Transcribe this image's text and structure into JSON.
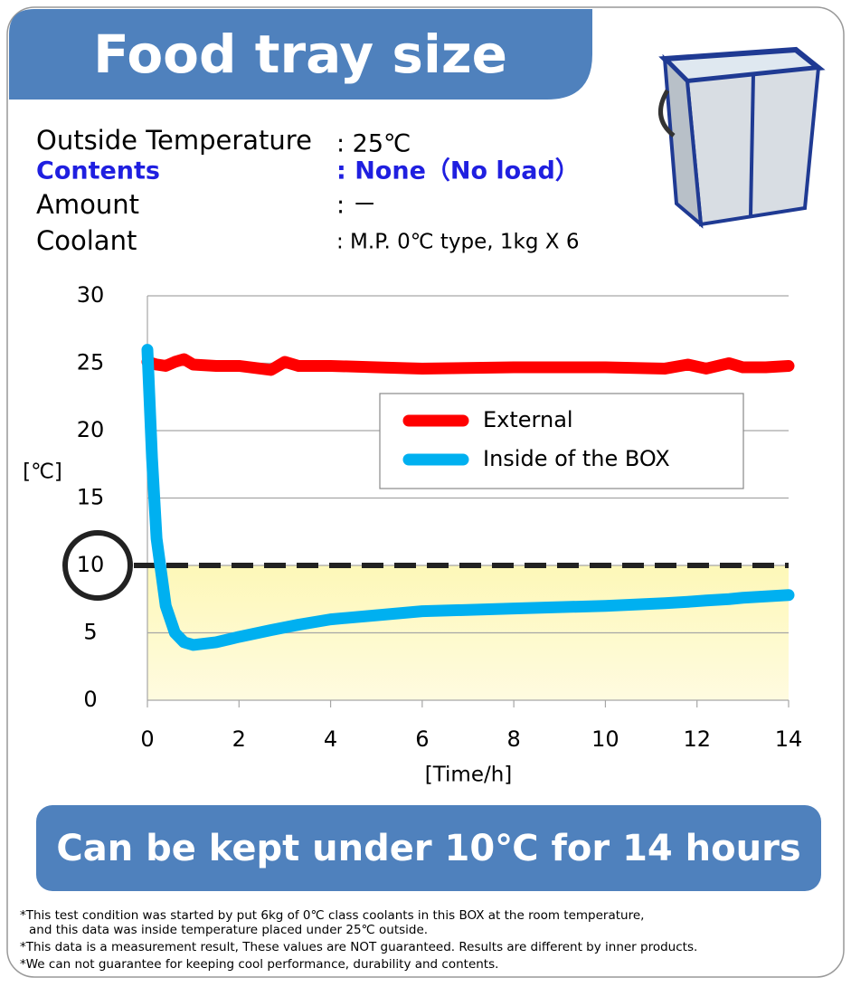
{
  "header": {
    "title": "Food tray size"
  },
  "conditions": [
    {
      "label": "Outside Temperature",
      "value": ": 25℃"
    },
    {
      "label": "Contents",
      "value": ": None（No load）"
    },
    {
      "label": "Amount",
      "value": ": －"
    },
    {
      "label": "Coolant",
      "value": ": M.P. 0℃ type, 1kg X 6"
    }
  ],
  "chart_data": {
    "type": "line",
    "y_label": "[℃]",
    "x_label": "[Time/h]",
    "x": [
      0,
      0.1,
      0.2,
      0.4,
      0.6,
      0.8,
      1,
      1.5,
      2,
      2.7,
      3,
      3.3,
      4,
      5,
      6,
      8,
      10,
      11.3,
      11.8,
      12.2,
      12.7,
      13,
      13.5,
      14
    ],
    "series": [
      {
        "name": "External",
        "color": "#ff0000",
        "values": [
          25.1,
          25.0,
          24.9,
          24.8,
          25.1,
          25.3,
          24.9,
          24.8,
          24.8,
          24.5,
          25.1,
          24.8,
          24.8,
          24.7,
          24.6,
          24.7,
          24.7,
          24.6,
          24.9,
          24.6,
          25.0,
          24.7,
          24.7,
          24.8
        ]
      },
      {
        "name": "Inside of the BOX",
        "color": "#00b0f0",
        "values": [
          26,
          18,
          12,
          7,
          5,
          4.3,
          4.1,
          4.3,
          4.7,
          5.2,
          5.4,
          5.6,
          6.0,
          6.3,
          6.6,
          6.8,
          7.0,
          7.2,
          7.3,
          7.4,
          7.5,
          7.6,
          7.7,
          7.8
        ]
      }
    ],
    "xlim": [
      0,
      14
    ],
    "xticks": [
      0,
      2,
      4,
      6,
      8,
      10,
      12,
      14
    ],
    "ylim": [
      0,
      30
    ],
    "yticks": [
      0,
      5,
      10,
      15,
      20,
      25,
      30
    ],
    "reference_line": 10,
    "grid": true
  },
  "banner": "Can be kept under 10℃ for 14 hours",
  "notes": [
    "*This test condition was started by put 6kg of 0℃ class coolants in this BOX at the room temperature,",
    "and this data was inside temperature placed under 25℃ outside.",
    "*This data is a measurement result, These values are NOT guaranteed. Results are different by inner products.",
    "*We can not guarantee for keeping cool performance, durability and contents."
  ]
}
